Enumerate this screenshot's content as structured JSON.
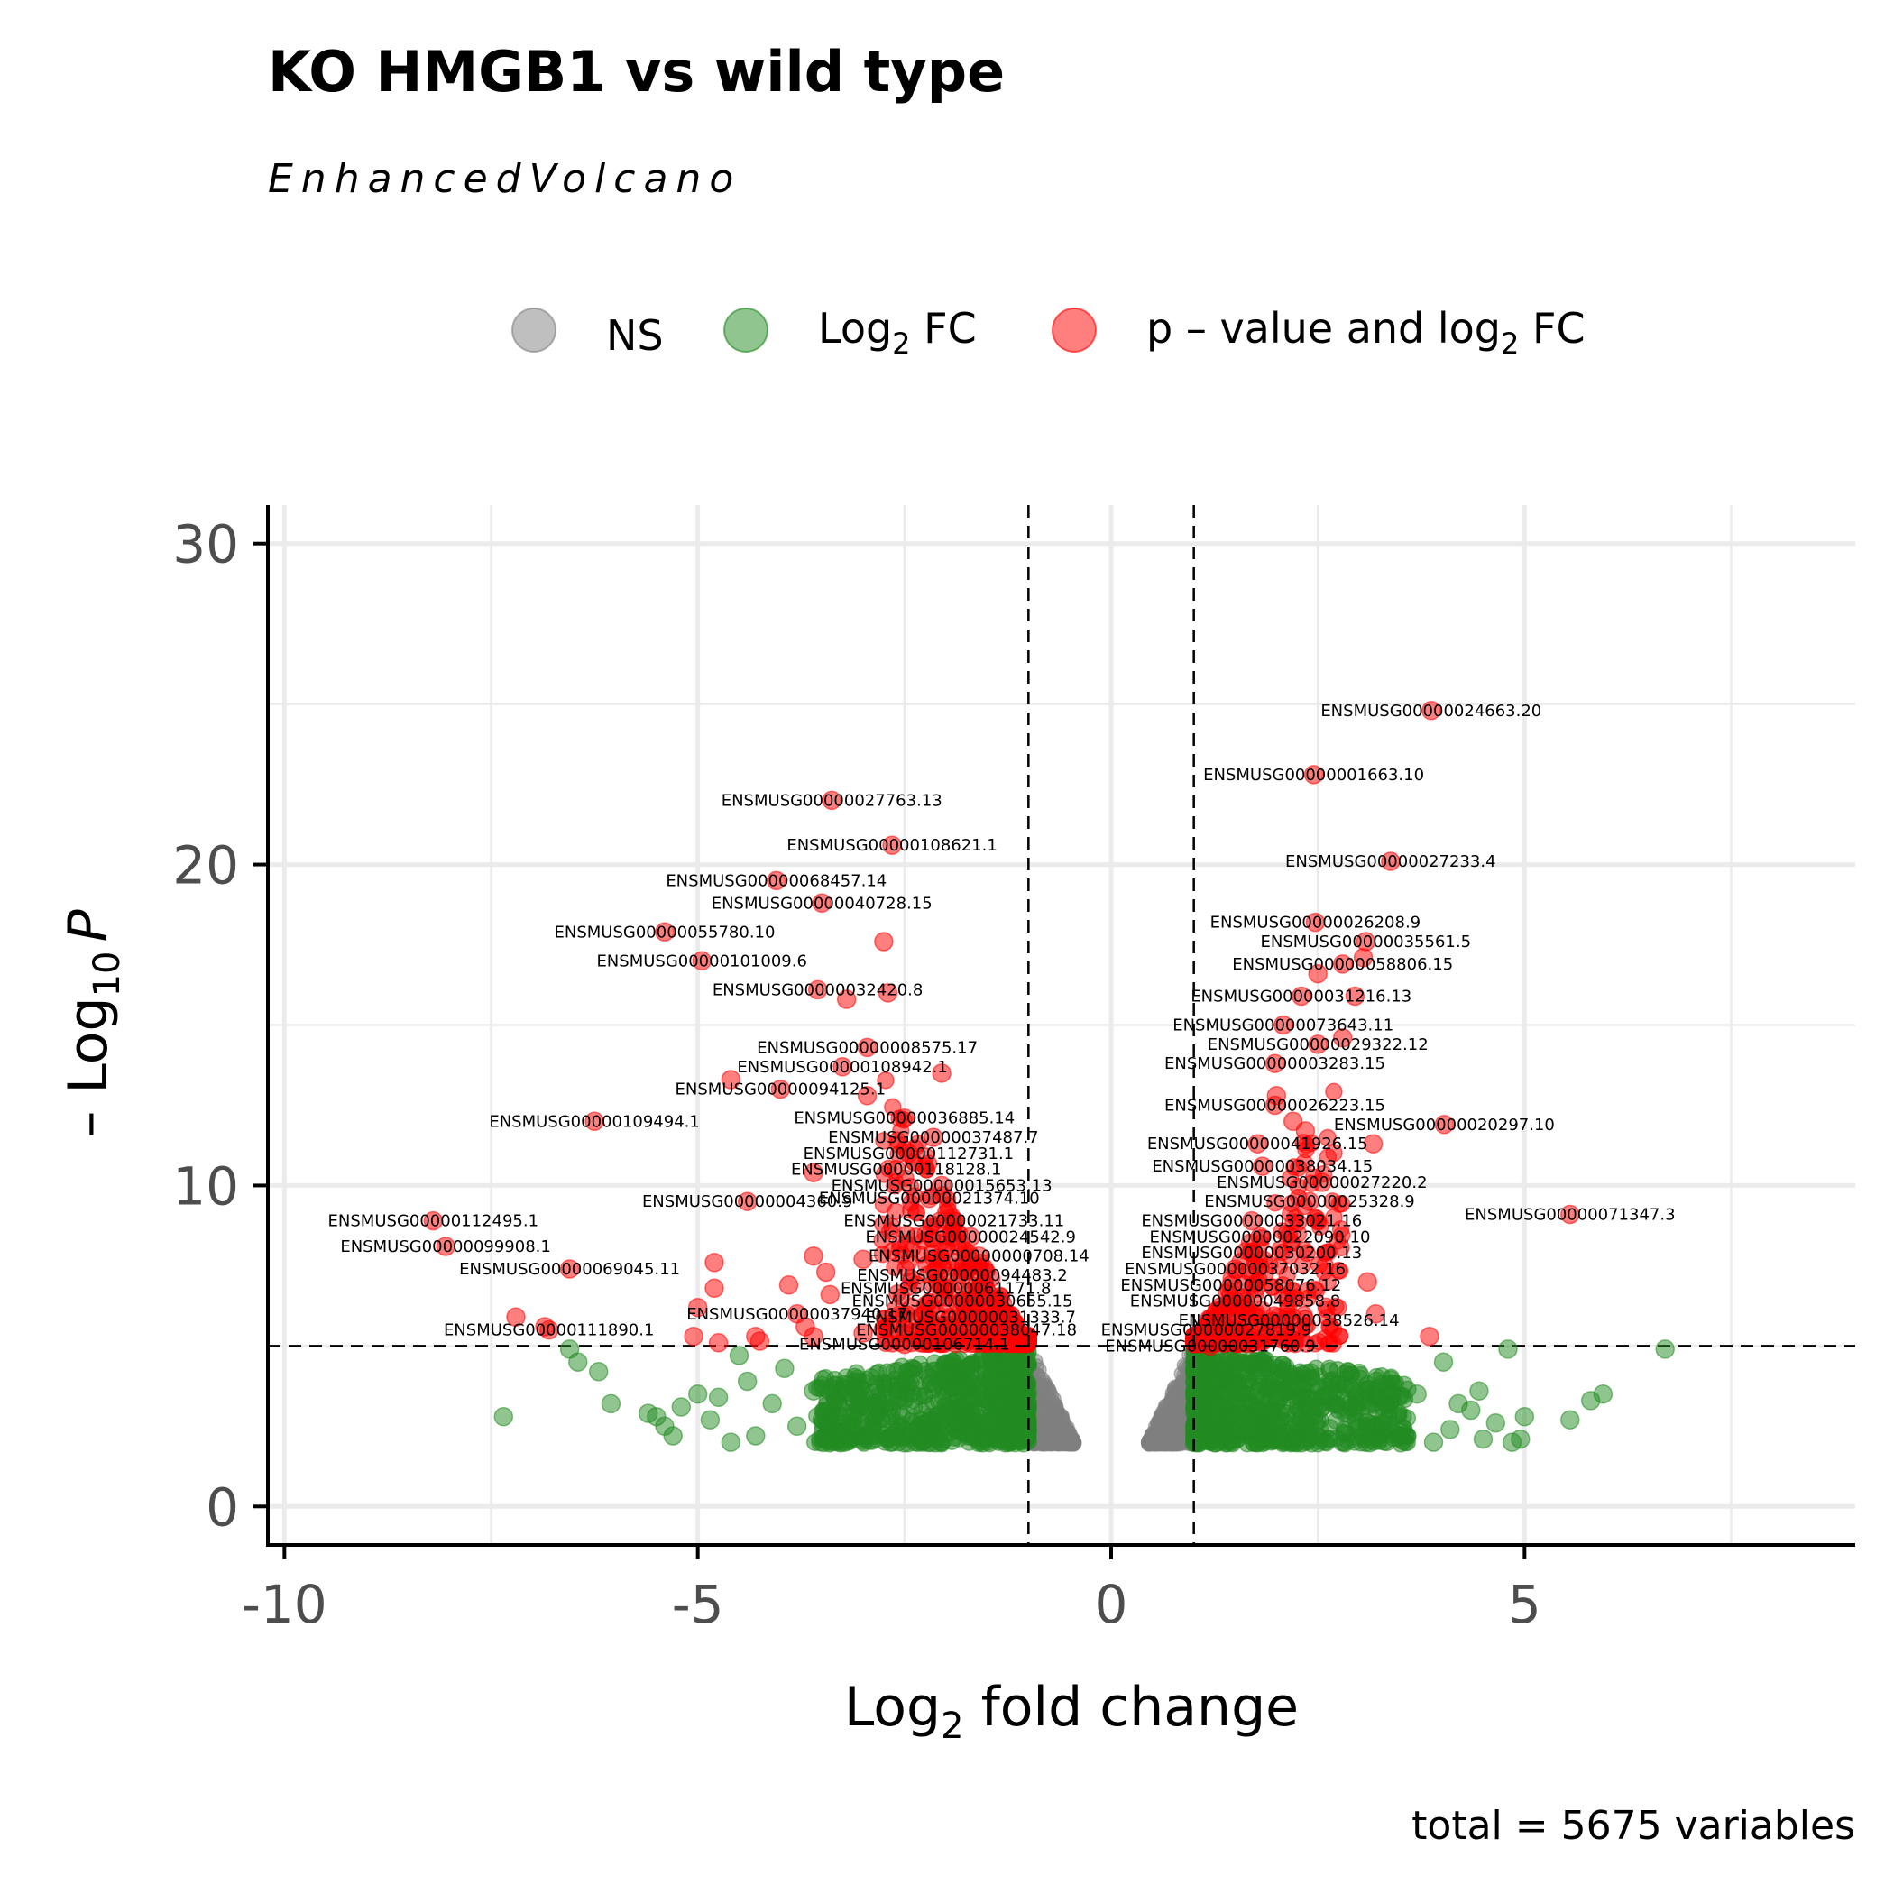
{
  "chart_data": {
    "type": "scatter",
    "title": "KO HMGB1 vs wild type",
    "subtitle": "EnhancedVolcano",
    "xlabel": "Log",
    "xlabel_sub": "2",
    "xlabel_tail": " fold change",
    "ylabel_prefix": "– Log",
    "ylabel_sub": "10",
    "ylabel_italic": "P",
    "caption": "total = 5675 variables",
    "xlim": [
      -10.2,
      9
    ],
    "ylim": [
      -1.2,
      31.2
    ],
    "xticks": [
      -10,
      -5,
      0,
      5
    ],
    "xtick_labels": [
      "-10",
      "-5",
      "0",
      "5"
    ],
    "yticks": [
      0,
      10,
      20,
      30
    ],
    "ytick_labels": [
      "0",
      "10",
      "20",
      "30"
    ],
    "grid": true,
    "legend_position": "top",
    "fc_cutoff": 1,
    "p_cutoff_neglog10": 5,
    "colors": {
      "NS": "#808080",
      "Log2FC": "#228b22",
      "both": "#ff0000"
    },
    "legend": [
      {
        "key": "NS",
        "color": "#808080",
        "text": "NS",
        "sub": "",
        "tail": ""
      },
      {
        "key": "Log2FC",
        "color": "#228b22",
        "text": "Log",
        "sub": "2",
        "tail": " FC"
      },
      {
        "key": "both",
        "color": "#ff0000",
        "text": "p – value and log",
        "sub": "2",
        "tail": " FC"
      }
    ],
    "labeled_points": [
      {
        "label": "ENSMUSG00000024663.20",
        "x": 3.87,
        "y": 24.8
      },
      {
        "label": "ENSMUSG00000001663.10",
        "x": 2.45,
        "y": 22.8
      },
      {
        "label": "ENSMUSG00000027233.4",
        "x": 3.38,
        "y": 20.1
      },
      {
        "label": "ENSMUSG00000026208.9",
        "x": 2.47,
        "y": 18.2
      },
      {
        "label": "ENSMUSG00000035561.5",
        "x": 3.08,
        "y": 17.6
      },
      {
        "label": "ENSMUSG00000058806.15",
        "x": 2.8,
        "y": 16.9
      },
      {
        "label": "ENSMUSG00000031216.13",
        "x": 2.3,
        "y": 15.9
      },
      {
        "label": "ENSMUSG00000073643.11",
        "x": 2.08,
        "y": 15.0
      },
      {
        "label": "ENSMUSG00000029322.12",
        "x": 2.5,
        "y": 14.4
      },
      {
        "label": "ENSMUSG00000003283.15",
        "x": 1.98,
        "y": 13.8
      },
      {
        "label": "ENSMUSG00000026223.15",
        "x": 1.98,
        "y": 12.5
      },
      {
        "label": "ENSMUSG00000020297.10",
        "x": 4.03,
        "y": 11.9
      },
      {
        "label": "ENSMUSG00000041926.15",
        "x": 1.77,
        "y": 11.3
      },
      {
        "label": "ENSMUSG00000038034.15",
        "x": 1.83,
        "y": 10.6
      },
      {
        "label": "ENSMUSG00000027220.2",
        "x": 2.55,
        "y": 10.1
      },
      {
        "label": "ENSMUSG00000025328.9",
        "x": 2.4,
        "y": 9.5
      },
      {
        "label": "ENSMUSG00000071347.3",
        "x": 5.55,
        "y": 9.1
      },
      {
        "label": "ENSMUSG00000033021.16",
        "x": 1.7,
        "y": 8.9
      },
      {
        "label": "ENSMUSG00000022090.10",
        "x": 1.8,
        "y": 8.4
      },
      {
        "label": "ENSMUSG00000030200.13",
        "x": 1.7,
        "y": 7.9
      },
      {
        "label": "ENSMUSG00000037032.16",
        "x": 1.5,
        "y": 7.4
      },
      {
        "label": "ENSMUSG00000058076.12",
        "x": 1.45,
        "y": 6.9
      },
      {
        "label": "ENSMUSG00000049858.8",
        "x": 1.5,
        "y": 6.4
      },
      {
        "label": "ENSMUSG00000038526.14",
        "x": 2.15,
        "y": 5.8
      },
      {
        "label": "ENSMUSG00000027819.9",
        "x": 1.15,
        "y": 5.5
      },
      {
        "label": "ENSMUSG00000031760.9",
        "x": 1.2,
        "y": 5.0
      },
      {
        "label": "ENSMUSG00000027763.13",
        "x": -3.38,
        "y": 22.0
      },
      {
        "label": "ENSMUSG00000108621.1",
        "x": -2.65,
        "y": 20.6
      },
      {
        "label": "ENSMUSG00000068457.14",
        "x": -4.05,
        "y": 19.5
      },
      {
        "label": "ENSMUSG00000040728.15",
        "x": -3.5,
        "y": 18.8
      },
      {
        "label": "ENSMUSG00000055780.10",
        "x": -5.4,
        "y": 17.9
      },
      {
        "label": "ENSMUSG00000101009.6",
        "x": -4.95,
        "y": 17.0
      },
      {
        "label": "ENSMUSG00000032420.8",
        "x": -3.55,
        "y": 16.1
      },
      {
        "label": "ENSMUSG00000008575.17",
        "x": -2.95,
        "y": 14.3
      },
      {
        "label": "ENSMUSG00000108942.1",
        "x": -3.25,
        "y": 13.7
      },
      {
        "label": "ENSMUSG00000094125.1",
        "x": -4.0,
        "y": 13.0
      },
      {
        "label": "ENSMUSG00000109494.1",
        "x": -6.25,
        "y": 12.0
      },
      {
        "label": "ENSMUSG00000036885.14",
        "x": -2.5,
        "y": 12.1
      },
      {
        "label": "ENSMUSG00000037487.7",
        "x": -2.15,
        "y": 11.5
      },
      {
        "label": "ENSMUSG00000112731.1",
        "x": -2.45,
        "y": 11.0
      },
      {
        "label": "ENSMUSG00000118128.1",
        "x": -2.6,
        "y": 10.5
      },
      {
        "label": "ENSMUSG00000015653.13",
        "x": -2.05,
        "y": 10.0
      },
      {
        "label": "ENSMUSG00000004360.9",
        "x": -4.4,
        "y": 9.5
      },
      {
        "label": "ENSMUSG00000021374.10",
        "x": -2.2,
        "y": 9.6
      },
      {
        "label": "ENSMUSG00000112495.1",
        "x": -8.2,
        "y": 8.9
      },
      {
        "label": "ENSMUSG00000021733.11",
        "x": -1.9,
        "y": 8.9
      },
      {
        "label": "ENSMUSG00000024542.9",
        "x": -1.7,
        "y": 8.4
      },
      {
        "label": "ENSMUSG00000099908.1",
        "x": -8.05,
        "y": 8.1
      },
      {
        "label": "ENSMUSG00000000708.14",
        "x": -1.6,
        "y": 7.8
      },
      {
        "label": "ENSMUSG00000069045.11",
        "x": -6.55,
        "y": 7.4
      },
      {
        "label": "ENSMUSG00000094483.2",
        "x": -1.8,
        "y": 7.2
      },
      {
        "label": "ENSMUSG00000061171.8",
        "x": -2.0,
        "y": 6.8
      },
      {
        "label": "ENSMUSG00000030655.15",
        "x": -1.8,
        "y": 6.4
      },
      {
        "label": "ENSMUSG00000037940.17",
        "x": -3.8,
        "y": 6.0
      },
      {
        "label": "ENSMUSG00000031333.7",
        "x": -1.7,
        "y": 5.9
      },
      {
        "label": "ENSMUSG00000111890.1",
        "x": -6.8,
        "y": 5.5
      },
      {
        "label": "ENSMUSG00000038047.18",
        "x": -1.75,
        "y": 5.5
      },
      {
        "label": "ENSMUSG00000106714.1",
        "x": -2.5,
        "y": 5.05
      }
    ],
    "unlabeled_highlight_points": [
      {
        "x": -2.75,
        "y": 17.6
      },
      {
        "x": -3.2,
        "y": 15.8
      },
      {
        "x": -2.7,
        "y": 16.0
      },
      {
        "x": -4.6,
        "y": 13.3
      },
      {
        "x": -2.05,
        "y": 13.5
      },
      {
        "x": -2.95,
        "y": 12.8
      },
      {
        "x": -3.6,
        "y": 10.4
      },
      {
        "x": -4.8,
        "y": 7.6
      },
      {
        "x": -4.8,
        "y": 6.8
      },
      {
        "x": -5.0,
        "y": 6.2
      },
      {
        "x": -5.05,
        "y": 5.3
      },
      {
        "x": -4.75,
        "y": 5.1
      },
      {
        "x": -7.2,
        "y": 5.9
      },
      {
        "x": -6.85,
        "y": 5.6
      },
      {
        "x": -3.4,
        "y": 6.6
      },
      {
        "x": -3.9,
        "y": 6.9
      },
      {
        "x": -3.7,
        "y": 5.6
      },
      {
        "x": -3.6,
        "y": 5.3
      },
      {
        "x": -4.3,
        "y": 5.3
      },
      {
        "x": -3.0,
        "y": 5.4
      },
      {
        "x": -3.0,
        "y": 7.7
      },
      {
        "x": -3.6,
        "y": 7.8
      },
      {
        "x": -3.45,
        "y": 7.3
      },
      {
        "x": -4.25,
        "y": 5.15
      },
      {
        "x": 3.17,
        "y": 11.3
      },
      {
        "x": 2.8,
        "y": 14.6
      },
      {
        "x": 2.95,
        "y": 15.9
      },
      {
        "x": 2.5,
        "y": 16.6
      },
      {
        "x": 3.05,
        "y": 17.1
      },
      {
        "x": 3.85,
        "y": 5.3
      },
      {
        "x": 3.1,
        "y": 7.0
      },
      {
        "x": 3.2,
        "y": 6.0
      },
      {
        "x": 2.2,
        "y": 12.0
      },
      {
        "x": 2.35,
        "y": 11.7
      },
      {
        "x": 2.0,
        "y": 12.8
      }
    ],
    "unlabeled_foldchange_points": [
      {
        "x": -7.35,
        "y": 2.8
      },
      {
        "x": -6.55,
        "y": 4.9
      },
      {
        "x": -6.45,
        "y": 4.5
      },
      {
        "x": -6.2,
        "y": 4.2
      },
      {
        "x": -6.05,
        "y": 3.2
      },
      {
        "x": -5.6,
        "y": 2.9
      },
      {
        "x": -5.5,
        "y": 2.8
      },
      {
        "x": -5.3,
        "y": 2.2
      },
      {
        "x": -5.2,
        "y": 3.1
      },
      {
        "x": -5.0,
        "y": 3.5
      },
      {
        "x": -4.85,
        "y": 2.7
      },
      {
        "x": -4.75,
        "y": 3.4
      },
      {
        "x": -4.5,
        "y": 4.7
      },
      {
        "x": -4.4,
        "y": 3.9
      },
      {
        "x": -4.3,
        "y": 2.2
      },
      {
        "x": -4.1,
        "y": 3.2
      },
      {
        "x": -3.95,
        "y": 4.3
      },
      {
        "x": -3.8,
        "y": 2.5
      },
      {
        "x": -3.6,
        "y": 3.6
      },
      {
        "x": -4.6,
        "y": 2.0
      },
      {
        "x": -5.4,
        "y": 2.5
      },
      {
        "x": 4.02,
        "y": 4.5
      },
      {
        "x": 4.2,
        "y": 3.2
      },
      {
        "x": 4.35,
        "y": 3.0
      },
      {
        "x": 4.45,
        "y": 3.6
      },
      {
        "x": 4.5,
        "y": 2.1
      },
      {
        "x": 4.65,
        "y": 2.6
      },
      {
        "x": 4.85,
        "y": 2.0
      },
      {
        "x": 4.95,
        "y": 2.1
      },
      {
        "x": 4.8,
        "y": 4.9
      },
      {
        "x": 5.0,
        "y": 2.8
      },
      {
        "x": 5.55,
        "y": 2.7
      },
      {
        "x": 5.8,
        "y": 3.3
      },
      {
        "x": 5.95,
        "y": 3.5
      },
      {
        "x": 6.7,
        "y": 4.9
      },
      {
        "x": 3.7,
        "y": 3.5
      },
      {
        "x": 3.5,
        "y": 2.2
      },
      {
        "x": 3.9,
        "y": 2.0
      },
      {
        "x": 4.1,
        "y": 2.4
      }
    ]
  }
}
